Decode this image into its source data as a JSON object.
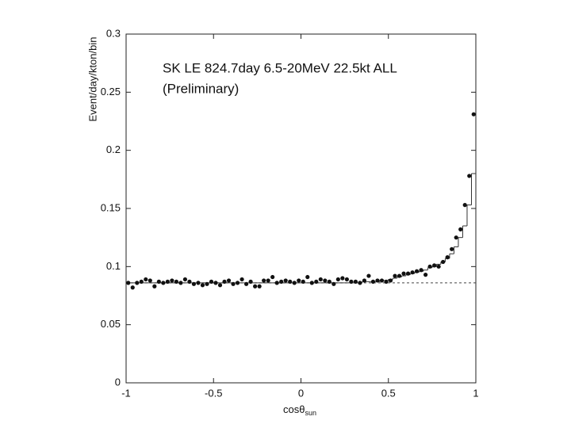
{
  "chart_data": {
    "type": "scatter",
    "title": "SK LE 824.7day  6.5-20MeV  22.5kt  ALL",
    "subtitle": "(Preliminary)",
    "x_label": "cosθ",
    "x_label_sub": "sun",
    "y_label": "Event/day/kton/bin",
    "x": [
      -0.9875,
      -0.9625,
      -0.9375,
      -0.9125,
      -0.8875,
      -0.8625,
      -0.8375,
      -0.8125,
      -0.7875,
      -0.7625,
      -0.7375,
      -0.7125,
      -0.6875,
      -0.6625,
      -0.6375,
      -0.6125,
      -0.5875,
      -0.5625,
      -0.5375,
      -0.5125,
      -0.4875,
      -0.4625,
      -0.4375,
      -0.4125,
      -0.3875,
      -0.3625,
      -0.3375,
      -0.3125,
      -0.2875,
      -0.2625,
      -0.2375,
      -0.2125,
      -0.1875,
      -0.1625,
      -0.1375,
      -0.1125,
      -0.0875,
      -0.0625,
      -0.0375,
      -0.0125,
      0.0125,
      0.0375,
      0.0625,
      0.0875,
      0.1125,
      0.1375,
      0.1625,
      0.1875,
      0.2125,
      0.2375,
      0.2625,
      0.2875,
      0.3125,
      0.3375,
      0.3625,
      0.3875,
      0.4125,
      0.4375,
      0.4625,
      0.4875,
      0.5125,
      0.5375,
      0.5625,
      0.5875,
      0.6125,
      0.6375,
      0.6625,
      0.6875,
      0.7125,
      0.7375,
      0.7625,
      0.7875,
      0.8125,
      0.8375,
      0.8625,
      0.8875,
      0.9125,
      0.9375,
      0.9625,
      0.9875
    ],
    "series": [
      {
        "color": "#111111",
        "values": [
          0.086,
          0.082,
          0.086,
          0.087,
          0.089,
          0.088,
          0.083,
          0.087,
          0.086,
          0.087,
          0.088,
          0.087,
          0.086,
          0.089,
          0.087,
          0.085,
          0.086,
          0.084,
          0.085,
          0.087,
          0.086,
          0.084,
          0.087,
          0.088,
          0.085,
          0.086,
          0.089,
          0.085,
          0.087,
          0.083,
          0.083,
          0.088,
          0.088,
          0.091,
          0.086,
          0.087,
          0.088,
          0.087,
          0.086,
          0.088,
          0.087,
          0.091,
          0.086,
          0.087,
          0.089,
          0.088,
          0.087,
          0.085,
          0.089,
          0.09,
          0.089,
          0.087,
          0.087,
          0.086,
          0.088,
          0.092,
          0.087,
          0.088,
          0.088,
          0.087,
          0.088,
          0.092,
          0.092,
          0.094,
          0.094,
          0.095,
          0.096,
          0.097,
          0.093,
          0.1,
          0.101,
          0.1,
          0.104,
          0.108,
          0.115,
          0.125,
          0.132,
          0.153,
          0.178,
          0.231
        ]
      },
      {
        "color": "#333333",
        "values": [
          0.086,
          0.086,
          0.086,
          0.086,
          0.086,
          0.086,
          0.086,
          0.086,
          0.086,
          0.086,
          0.086,
          0.086,
          0.086,
          0.086,
          0.086,
          0.086,
          0.086,
          0.086,
          0.086,
          0.086,
          0.086,
          0.086,
          0.086,
          0.086,
          0.086,
          0.086,
          0.086,
          0.086,
          0.086,
          0.086,
          0.086,
          0.086,
          0.086,
          0.086,
          0.086,
          0.086,
          0.086,
          0.086,
          0.086,
          0.086,
          0.086,
          0.086,
          0.086,
          0.086,
          0.086,
          0.086,
          0.086,
          0.086,
          0.086,
          0.086,
          0.086,
          0.086,
          0.086,
          0.086,
          0.087,
          0.087,
          0.087,
          0.087,
          0.088,
          0.088,
          0.089,
          0.09,
          0.091,
          0.092,
          0.093,
          0.094,
          0.095,
          0.096,
          0.097,
          0.099,
          0.1,
          0.102,
          0.104,
          0.107,
          0.111,
          0.117,
          0.125,
          0.135,
          0.153,
          0.18
        ]
      }
    ],
    "background": 0.086,
    "xlim": [
      -1,
      1
    ],
    "xticks": [
      -1,
      -0.5,
      0,
      0.5,
      1
    ],
    "ylim": [
      0,
      0.3
    ],
    "yticks": [
      0,
      0.05,
      0.1,
      0.15,
      0.2,
      0.25,
      0.3
    ]
  }
}
